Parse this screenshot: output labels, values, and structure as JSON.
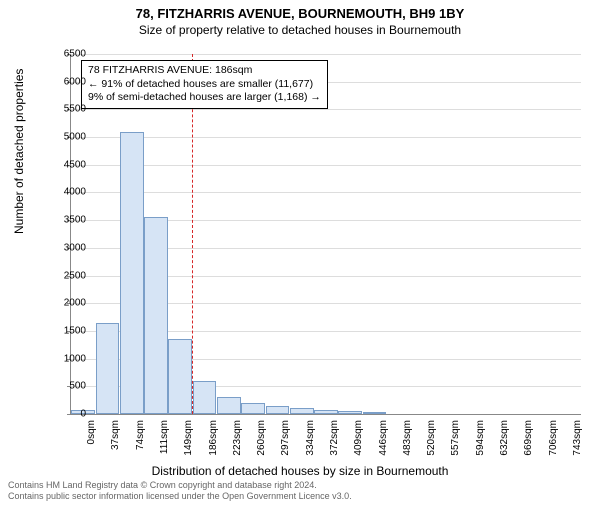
{
  "title": "78, FITZHARRIS AVENUE, BOURNEMOUTH, BH9 1BY",
  "subtitle": "Size of property relative to detached houses in Bournemouth",
  "chart": {
    "type": "histogram",
    "ylabel": "Number of detached properties",
    "xlabel": "Distribution of detached houses by size in Bournemouth",
    "ymax": 6500,
    "ytick_step": 500,
    "background_color": "#ffffff",
    "grid_color": "#dddddd",
    "axis_color": "#888888",
    "bar_fill": "#d6e4f5",
    "bar_border": "#7a9ec8",
    "reference_line_color": "#d62728",
    "reference_line_x_index": 5,
    "label_fontsize": 12,
    "tick_fontsize": 10,
    "x_categories": [
      "0sqm",
      "37sqm",
      "74sqm",
      "111sqm",
      "149sqm",
      "186sqm",
      "223sqm",
      "260sqm",
      "297sqm",
      "334sqm",
      "372sqm",
      "409sqm",
      "446sqm",
      "483sqm",
      "520sqm",
      "557sqm",
      "594sqm",
      "632sqm",
      "669sqm",
      "706sqm",
      "743sqm"
    ],
    "values": [
      80,
      1650,
      5100,
      3550,
      1350,
      600,
      300,
      200,
      150,
      110,
      80,
      60,
      40,
      0,
      0,
      0,
      0,
      0,
      0,
      0,
      0
    ]
  },
  "annotation": {
    "line1": "78 FITZHARRIS AVENUE: 186sqm",
    "line2": "← 91% of detached houses are smaller (11,677)",
    "line3": "9% of semi-detached houses are larger (1,168) →"
  },
  "footer": {
    "line1": "Contains HM Land Registry data © Crown copyright and database right 2024.",
    "line2": "Contains public sector information licensed under the Open Government Licence v3.0."
  }
}
